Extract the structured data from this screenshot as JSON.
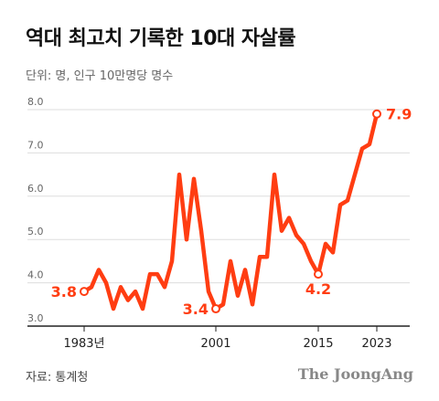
{
  "title": "역대 최고치 기록한 10대 자살률",
  "unit_note": "단위: 명, 인구 10만명당 명수",
  "source": "자료: 통계청",
  "brand": "The JoongAng",
  "colors": {
    "line": "#ff3d12",
    "grid": "#dddddd",
    "axis": "#222222",
    "title": "#111111"
  },
  "chart_data": {
    "type": "line",
    "title": "역대 최고치 기록한 10대 자살률",
    "xlabel": "",
    "ylabel": "",
    "ylim": [
      3.0,
      8.0
    ],
    "xlim": [
      1983,
      2023
    ],
    "yticks": [
      "3.0",
      "4.0",
      "5.0",
      "6.0",
      "7.0",
      "8.0"
    ],
    "xticks": [
      {
        "year": 1983,
        "label": "1983년"
      },
      {
        "year": 2001,
        "label": "2001"
      },
      {
        "year": 2015,
        "label": "2015"
      },
      {
        "year": 2023,
        "label": "2023"
      }
    ],
    "grid": true,
    "x": [
      1983,
      1984,
      1985,
      1986,
      1987,
      1988,
      1989,
      1990,
      1991,
      1992,
      1993,
      1994,
      1995,
      1996,
      1997,
      1998,
      1999,
      2000,
      2001,
      2002,
      2003,
      2004,
      2005,
      2006,
      2007,
      2008,
      2009,
      2010,
      2011,
      2012,
      2013,
      2014,
      2015,
      2016,
      2017,
      2018,
      2019,
      2020,
      2021,
      2022,
      2023
    ],
    "values": [
      3.8,
      3.9,
      4.3,
      4.0,
      3.4,
      3.9,
      3.6,
      3.8,
      3.4,
      4.2,
      4.2,
      3.9,
      4.5,
      6.5,
      5.0,
      6.4,
      5.2,
      3.8,
      3.4,
      3.5,
      4.5,
      3.7,
      4.3,
      3.5,
      4.6,
      4.6,
      6.5,
      5.2,
      5.5,
      5.1,
      4.9,
      4.5,
      4.2,
      4.9,
      4.7,
      5.8,
      5.9,
      6.5,
      7.1,
      7.2,
      7.9
    ],
    "annotations": [
      {
        "year": 1983,
        "value": 3.8,
        "label": "3.8",
        "position": "left"
      },
      {
        "year": 2001,
        "value": 3.4,
        "label": "3.4",
        "position": "left"
      },
      {
        "year": 2015,
        "value": 4.2,
        "label": "4.2",
        "position": "below"
      },
      {
        "year": 2023,
        "value": 7.9,
        "label": "7.9",
        "position": "right"
      }
    ]
  }
}
